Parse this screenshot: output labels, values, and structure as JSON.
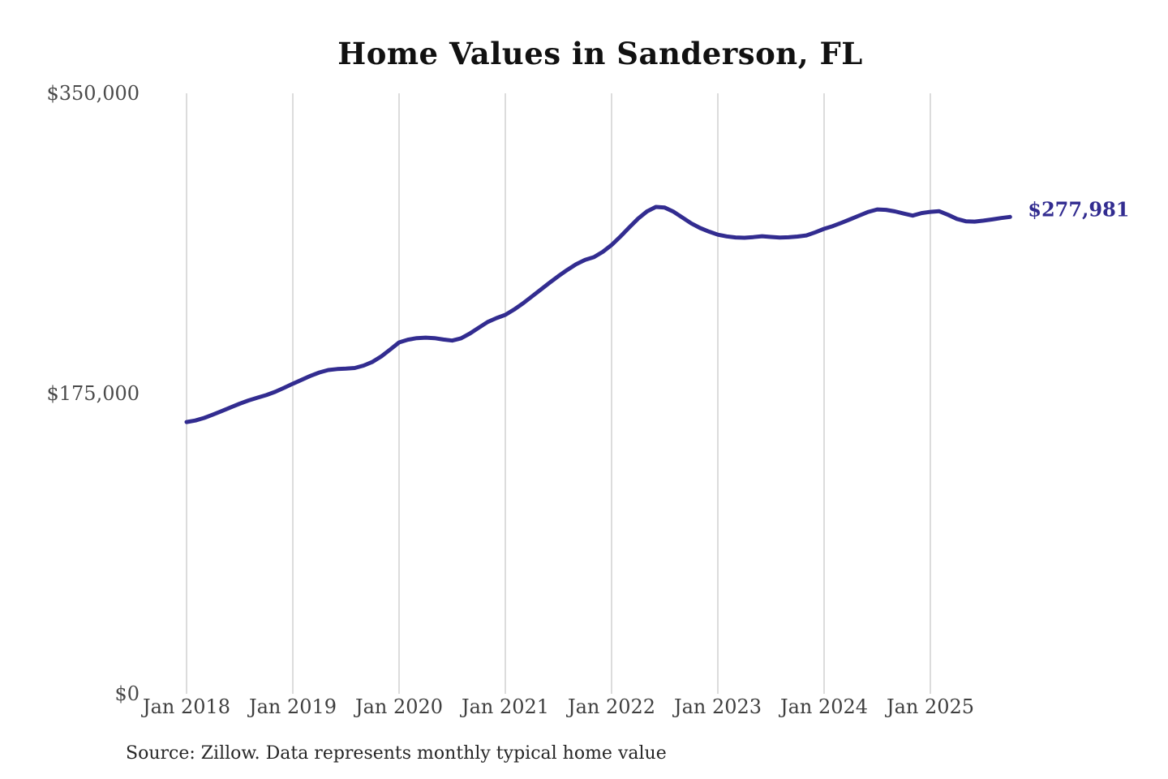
{
  "page": {
    "background": "#ffffff"
  },
  "header": {
    "title": "Home Values in Sanderson, FL"
  },
  "footer": {
    "source_note": "Source: Zillow. Data represents monthly typical home value"
  },
  "annotation": {
    "end_value_label": "$277,981"
  },
  "colors": {
    "line": "#322c90",
    "end_label": "#322c90",
    "grid": "#c9c9c9",
    "title": "#111111",
    "tick_text": "#444444"
  },
  "chart_data": {
    "type": "line",
    "title": "Home Values in Sanderson, FL",
    "xlabel": "",
    "ylabel": "",
    "ylim": [
      0,
      350000
    ],
    "grid": "vertical-only",
    "legend": "none",
    "line_color": "#322c90",
    "end_annotation": "$277,981",
    "source_note": "Source: Zillow. Data represents monthly typical home value",
    "y_ticks": [
      {
        "label": "$0",
        "value": 0
      },
      {
        "label": "$175,000",
        "value": 175000
      },
      {
        "label": "$350,000",
        "value": 350000
      }
    ],
    "x_tick_labels": [
      "Jan 2018",
      "Jan 2019",
      "Jan 2020",
      "Jan 2021",
      "Jan 2022",
      "Jan 2023",
      "Jan 2024",
      "Jan 2025"
    ],
    "x": [
      "2018-01",
      "2018-02",
      "2018-03",
      "2018-04",
      "2018-05",
      "2018-06",
      "2018-07",
      "2018-08",
      "2018-09",
      "2018-10",
      "2018-11",
      "2018-12",
      "2019-01",
      "2019-02",
      "2019-03",
      "2019-04",
      "2019-05",
      "2019-06",
      "2019-07",
      "2019-08",
      "2019-09",
      "2019-10",
      "2019-11",
      "2019-12",
      "2020-01",
      "2020-02",
      "2020-03",
      "2020-04",
      "2020-05",
      "2020-06",
      "2020-07",
      "2020-08",
      "2020-09",
      "2020-10",
      "2020-11",
      "2020-12",
      "2021-01",
      "2021-02",
      "2021-03",
      "2021-04",
      "2021-05",
      "2021-06",
      "2021-07",
      "2021-08",
      "2021-09",
      "2021-10",
      "2021-11",
      "2021-12",
      "2022-01",
      "2022-02",
      "2022-03",
      "2022-04",
      "2022-05",
      "2022-06",
      "2022-07",
      "2022-08",
      "2022-09",
      "2022-10",
      "2022-11",
      "2022-12",
      "2023-01",
      "2023-02",
      "2023-03",
      "2023-04",
      "2023-05",
      "2023-06",
      "2023-07",
      "2023-08",
      "2023-09",
      "2023-10",
      "2023-11",
      "2023-12",
      "2024-01",
      "2024-02",
      "2024-03",
      "2024-04",
      "2024-05",
      "2024-06",
      "2024-07",
      "2024-08",
      "2024-09",
      "2024-10",
      "2024-11",
      "2024-12",
      "2025-01",
      "2025-02",
      "2025-03",
      "2025-04",
      "2025-05",
      "2025-06",
      "2025-07",
      "2025-08",
      "2025-09",
      "2025-10"
    ],
    "values": [
      158400,
      159300,
      160800,
      162800,
      164900,
      167000,
      169100,
      171000,
      172600,
      174100,
      176000,
      178300,
      180700,
      183000,
      185300,
      187300,
      188700,
      189300,
      189500,
      189900,
      191300,
      193500,
      196700,
      200700,
      204800,
      206400,
      207300,
      207600,
      207300,
      206500,
      205900,
      207200,
      210000,
      213400,
      216700,
      219000,
      220900,
      224000,
      227600,
      231600,
      235600,
      239600,
      243500,
      247100,
      250400,
      252900,
      254500,
      257600,
      261600,
      266500,
      271800,
      277000,
      281200,
      283800,
      283400,
      281000,
      277600,
      274200,
      271500,
      269400,
      267600,
      266600,
      266000,
      265800,
      266200,
      266700,
      266300,
      265900,
      266100,
      266500,
      267200,
      269000,
      271000,
      272600,
      274600,
      276700,
      278800,
      280900,
      282300,
      282100,
      281200,
      279900,
      278700,
      280200,
      280900,
      281300,
      279200,
      276800,
      275400,
      275200,
      275800,
      276500,
      277300,
      277981
    ]
  }
}
